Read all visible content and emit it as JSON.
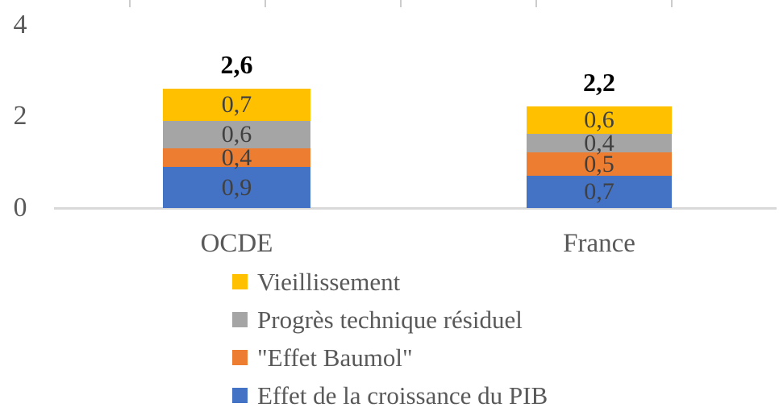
{
  "chart_data": {
    "type": "bar",
    "stacked": true,
    "title": "",
    "categories": [
      "OCDE",
      "France"
    ],
    "series": [
      {
        "name": "Effet de la croissance du PIB",
        "color": "#4472C4",
        "values": [
          0.9,
          0.7
        ],
        "labels": [
          "0,9",
          "0,7"
        ]
      },
      {
        "name": "\"Effet Baumol\"",
        "color": "#ED7D31",
        "values": [
          0.4,
          0.5
        ],
        "labels": [
          "0,4",
          "0,5"
        ]
      },
      {
        "name": "Progrès technique résiduel",
        "color": "#A5A5A5",
        "values": [
          0.6,
          0.4
        ],
        "labels": [
          "0,6",
          "0,4"
        ]
      },
      {
        "name": "Vieillissement",
        "color": "#FFC000",
        "values": [
          0.7,
          0.6
        ],
        "labels": [
          "0,7",
          "0,6"
        ]
      }
    ],
    "totals": {
      "values": [
        2.6,
        2.2
      ],
      "labels": [
        "2,6",
        "2,2"
      ]
    },
    "y_axis": {
      "range": [
        0,
        4
      ],
      "ticks": [
        {
          "value": 4,
          "label": "4"
        },
        {
          "value": 2,
          "label": "2"
        },
        {
          "value": 0,
          "label": "0"
        }
      ]
    },
    "legend": {
      "position": "bottom-left",
      "items": [
        {
          "label": "Vieillissement",
          "color": "#FFC000"
        },
        {
          "label": "Progrès technique résiduel",
          "color": "#A5A5A5"
        },
        {
          "label": "\"Effet Baumol\"",
          "color": "#ED7D31"
        },
        {
          "label": "Effet de la croissance du PIB",
          "color": "#4472C4"
        }
      ]
    },
    "gridlines": false,
    "colors": {
      "axis_text": "#595959",
      "data_label": "#404040",
      "total_label": "#000000",
      "baseline": "#D9D9D9"
    }
  }
}
